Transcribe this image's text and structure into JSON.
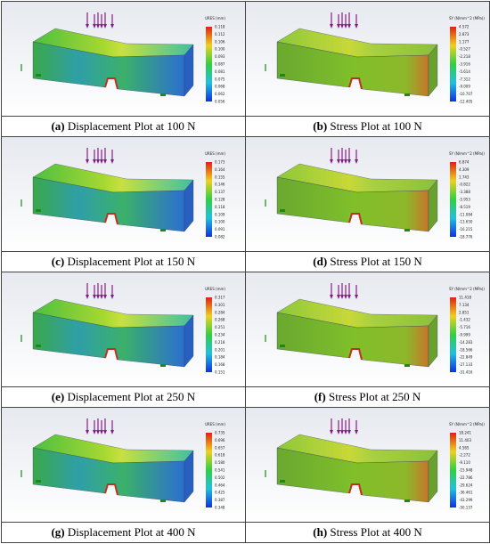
{
  "figure": {
    "panels": [
      {
        "label": "(a)",
        "caption": "Displacement Plot at 100 N",
        "colorbar": {
          "title": "URES (mm)",
          "ticks": [
            "0.118",
            "0.112",
            "0.106",
            "0.100",
            "0.093",
            "0.087",
            "0.081",
            "0.075",
            "0.068",
            "0.062",
            "0.056"
          ]
        }
      },
      {
        "label": "(b)",
        "caption": "Stress Plot at 100 N",
        "colorbar": {
          "title": "SY (N/mm^2 (MPa))",
          "ticks": [
            "4.572",
            "2.873",
            "1.177",
            "-0.527",
            "-2.218",
            "-3.916",
            "-5.614",
            "-7.312",
            "-9.009",
            "-10.707",
            "-12.405"
          ]
        }
      },
      {
        "label": "(c)",
        "caption": "Displacement Plot at 150 N",
        "colorbar": {
          "title": "URES (mm)",
          "ticks": [
            "0.173",
            "0.164",
            "0.155",
            "0.146",
            "0.137",
            "0.128",
            "0.118",
            "0.109",
            "0.100",
            "0.091",
            "0.082"
          ]
        }
      },
      {
        "label": "(d)",
        "caption": "Stress Plot at 150 N",
        "colorbar": {
          "title": "SY (N/mm^2 (MPa))",
          "ticks": [
            "6.874",
            "4.309",
            "1.743",
            "-0.822",
            "-3.388",
            "-5.953",
            "-8.519",
            "-11.084",
            "-13.650",
            "-16.215",
            "-18.776"
          ]
        }
      },
      {
        "label": "(e)",
        "caption": "Displacement Plot at 250 N",
        "colorbar": {
          "title": "URES (mm)",
          "ticks": [
            "0.317",
            "0.301",
            "0.284",
            "0.268",
            "0.251",
            "0.234",
            "0.218",
            "0.201",
            "0.184",
            "0.168",
            "0.151"
          ]
        }
      },
      {
        "label": "(f)",
        "caption": "Stress Plot at 250 N",
        "colorbar": {
          "title": "SY (N/mm^2 (MPa))",
          "ticks": [
            "11.418",
            "7.134",
            "2.851",
            "-1.432",
            "-5.716",
            "-9.999",
            "-14.283",
            "-18.566",
            "-22.849",
            "-27.133",
            "-31.416"
          ]
        }
      },
      {
        "label": "(g)",
        "caption": "Displacement Plot at 400 N",
        "colorbar": {
          "title": "URES (mm)",
          "ticks": [
            "0.735",
            "0.696",
            "0.657",
            "0.618",
            "0.580",
            "0.541",
            "0.502",
            "0.464",
            "0.425",
            "0.387",
            "0.348"
          ]
        }
      },
      {
        "label": "(h)",
        "caption": "Stress Plot at 400 N",
        "colorbar": {
          "title": "SY (N/mm^2 (MPa))",
          "ticks": [
            "18.241",
            "11.403",
            "4.565",
            "-2.272",
            "-9.110",
            "-15.948",
            "-22.786",
            "-29.624",
            "-36.461",
            "-43.299",
            "-50.137"
          ]
        }
      }
    ]
  }
}
